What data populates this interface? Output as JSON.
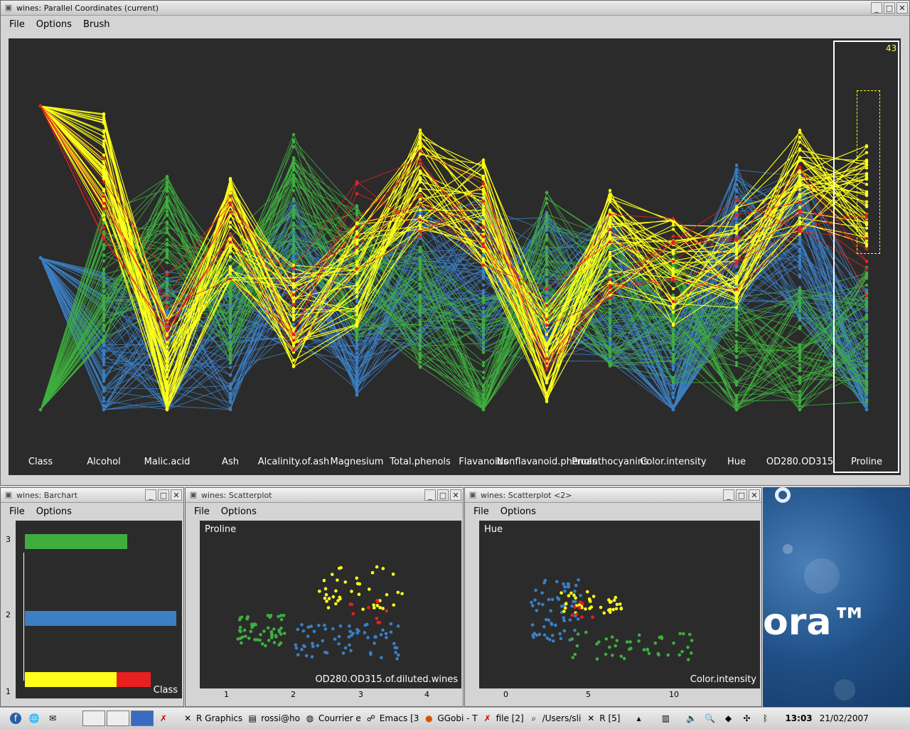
{
  "main_window": {
    "title": "wines: Parallel Coordinates (current)",
    "menu": [
      "File",
      "Options",
      "Brush"
    ],
    "count": "43",
    "axes": [
      "Class",
      "Alcohol",
      "Malic.acid",
      "Ash",
      "Alcalinity.of.ash",
      "Magnesium",
      "Total.phenols",
      "Flavanoids",
      "Nonflavanoid.phenols",
      "Proanthocyanins",
      "Color.intensity",
      "Hue",
      "OD280.OD315",
      "Proline"
    ]
  },
  "barchart_window": {
    "title": "wines: Barchart",
    "menu": [
      "File",
      "Options"
    ],
    "var_label": "Class",
    "ticks": [
      "3",
      "2",
      "1"
    ]
  },
  "scatter1_window": {
    "title": "wines: Scatterplot",
    "menu": [
      "File",
      "Options"
    ],
    "ylabel": "Proline",
    "xlabel": "OD280.OD315.of.diluted.wines",
    "xticks": [
      "1",
      "2",
      "3",
      "4"
    ]
  },
  "scatter2_window": {
    "title": "wines: Scatterplot   <2>",
    "menu": [
      "File",
      "Options"
    ],
    "ylabel": "Hue",
    "xlabel": "Color.intensity",
    "xticks": [
      "0",
      "5",
      "10"
    ]
  },
  "desktop_logo": "ora™",
  "taskbar": {
    "tasks": [
      "R Graphics",
      "rossi@ho",
      "Courrier e",
      "Emacs [3",
      "GGobi - T",
      "file [2]",
      "/Users/sli",
      "R [5]"
    ],
    "time": "13:03",
    "date": "21/02/2007"
  },
  "colors": {
    "green": "#3fae3f",
    "blue": "#3b7fc4",
    "yellow": "#ffff1a",
    "red": "#e82020",
    "plot_bg": "#2b2b2b"
  }
}
